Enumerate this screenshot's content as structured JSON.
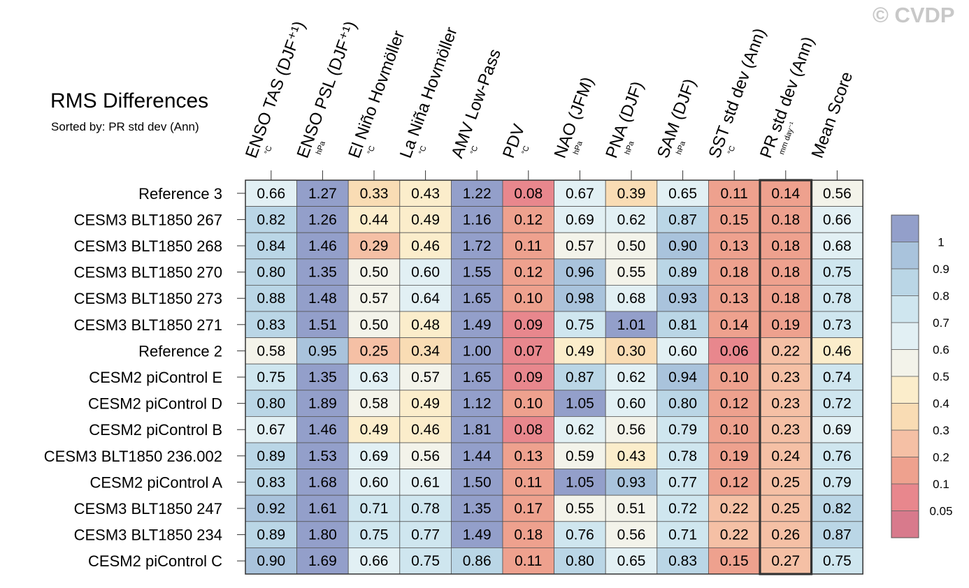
{
  "header": {
    "title": "RMS Differences",
    "subtitle": "Sorted by: PR std dev (Ann)",
    "copyright": "© CVDP"
  },
  "chart_data": {
    "type": "heatmap",
    "title": "RMS Differences",
    "subtitle": "Sorted by: PR std dev (Ann)",
    "highlighted_column": "PR std dev (Ann)",
    "columns": [
      {
        "label": "ENSO TAS (DJF⁺¹)",
        "unit": "°C"
      },
      {
        "label": "ENSO PSL (DJF⁺¹)",
        "unit": "hPa"
      },
      {
        "label": "El Niño Hovmöller",
        "unit": "°C"
      },
      {
        "label": "La Niña Hovmöller",
        "unit": "°C"
      },
      {
        "label": "AMV Low-Pass",
        "unit": "°C"
      },
      {
        "label": "PDV",
        "unit": "°C"
      },
      {
        "label": "NAO (JFM)",
        "unit": "hPa"
      },
      {
        "label": "PNA (DJF)",
        "unit": "hPa"
      },
      {
        "label": "SAM (DJF)",
        "unit": "hPa"
      },
      {
        "label": "SST std dev (Ann)",
        "unit": "°C"
      },
      {
        "label": "PR std dev (Ann)",
        "unit": "mm day⁻¹"
      },
      {
        "label": "Mean Score",
        "unit": ""
      }
    ],
    "rows": [
      "Reference 3",
      "CESM3 BLT1850 267",
      "CESM3 BLT1850 268",
      "CESM3 BLT1850 270",
      "CESM3 BLT1850 273",
      "CESM3 BLT1850 271",
      "Reference 2",
      "CESM2 piControl E",
      "CESM2 piControl D",
      "CESM2 piControl B",
      "CESM3 BLT1850 236.002",
      "CESM2 piControl A",
      "CESM3 BLT1850 247",
      "CESM3 BLT1850 234",
      "CESM2 piControl C"
    ],
    "values": [
      [
        "0.66",
        "1.27",
        "0.33",
        "0.43",
        "1.22",
        "0.08",
        "0.67",
        "0.39",
        "0.65",
        "0.11",
        "0.14",
        "0.56"
      ],
      [
        "0.82",
        "1.26",
        "0.44",
        "0.49",
        "1.16",
        "0.12",
        "0.69",
        "0.62",
        "0.87",
        "0.15",
        "0.18",
        "0.66"
      ],
      [
        "0.84",
        "1.46",
        "0.29",
        "0.46",
        "1.72",
        "0.11",
        "0.57",
        "0.50",
        "0.90",
        "0.13",
        "0.18",
        "0.68"
      ],
      [
        "0.80",
        "1.35",
        "0.50",
        "0.60",
        "1.55",
        "0.12",
        "0.96",
        "0.55",
        "0.89",
        "0.18",
        "0.18",
        "0.75"
      ],
      [
        "0.88",
        "1.48",
        "0.57",
        "0.64",
        "1.65",
        "0.10",
        "0.98",
        "0.68",
        "0.93",
        "0.13",
        "0.18",
        "0.78"
      ],
      [
        "0.83",
        "1.51",
        "0.50",
        "0.48",
        "1.49",
        "0.09",
        "0.75",
        "1.01",
        "0.81",
        "0.14",
        "0.19",
        "0.73"
      ],
      [
        "0.58",
        "0.95",
        "0.25",
        "0.34",
        "1.00",
        "0.07",
        "0.49",
        "0.30",
        "0.60",
        "0.06",
        "0.22",
        "0.46"
      ],
      [
        "0.75",
        "1.35",
        "0.63",
        "0.57",
        "1.65",
        "0.09",
        "0.87",
        "0.62",
        "0.94",
        "0.10",
        "0.23",
        "0.74"
      ],
      [
        "0.80",
        "1.89",
        "0.58",
        "0.49",
        "1.12",
        "0.10",
        "1.05",
        "0.60",
        "0.80",
        "0.12",
        "0.23",
        "0.72"
      ],
      [
        "0.67",
        "1.46",
        "0.49",
        "0.46",
        "1.81",
        "0.08",
        "0.62",
        "0.56",
        "0.79",
        "0.10",
        "0.23",
        "0.69"
      ],
      [
        "0.89",
        "1.53",
        "0.69",
        "0.56",
        "1.44",
        "0.13",
        "0.59",
        "0.43",
        "0.78",
        "0.19",
        "0.24",
        "0.76"
      ],
      [
        "0.83",
        "1.68",
        "0.60",
        "0.61",
        "1.50",
        "0.11",
        "1.05",
        "0.93",
        "0.77",
        "0.12",
        "0.25",
        "0.79"
      ],
      [
        "0.92",
        "1.61",
        "0.71",
        "0.78",
        "1.35",
        "0.17",
        "0.55",
        "0.51",
        "0.72",
        "0.22",
        "0.25",
        "0.82"
      ],
      [
        "0.89",
        "1.80",
        "0.75",
        "0.77",
        "1.49",
        "0.18",
        "0.76",
        "0.56",
        "0.71",
        "0.22",
        "0.26",
        "0.87"
      ],
      [
        "0.90",
        "1.69",
        "0.66",
        "0.75",
        "0.86",
        "0.11",
        "0.80",
        "0.65",
        "0.83",
        "0.15",
        "0.27",
        "0.75"
      ]
    ],
    "colorbar": {
      "levels": [
        "1",
        "0.9",
        "0.8",
        "0.7",
        "0.6",
        "0.5",
        "0.4",
        "0.3",
        "0.2",
        "0.1",
        "0.05"
      ],
      "thresholds": [
        1,
        0.9,
        0.8,
        0.7,
        0.6,
        0.5,
        0.4,
        0.3,
        0.2,
        0.1,
        0.05
      ],
      "colors": [
        "#939fca",
        "#a9c3dc",
        "#bad6e6",
        "#cfe6ef",
        "#e2f0f4",
        "#f3f3ea",
        "#fbedcb",
        "#f9dcb4",
        "#f5c0a5",
        "#eea18e",
        "#e8878d",
        "#d87a8c"
      ]
    }
  }
}
